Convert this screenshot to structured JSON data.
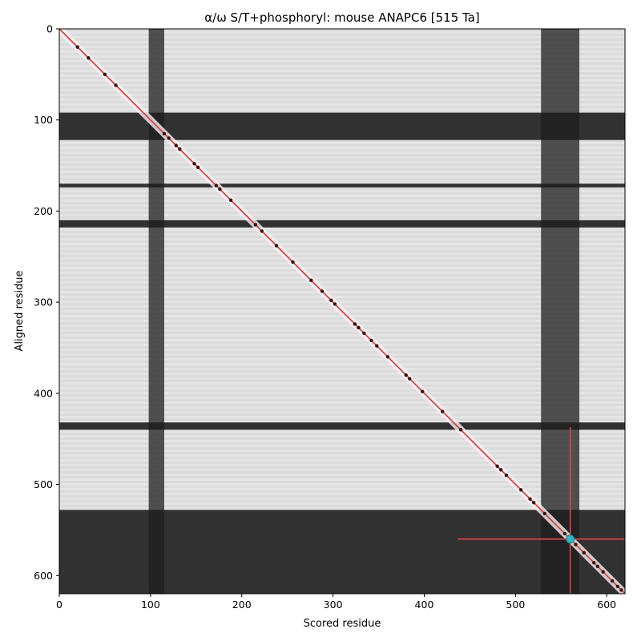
{
  "chart_data": {
    "type": "heatmap",
    "title": "α/ω S/T+phosphoryl: mouse ANAPC6 [515 Ta]",
    "xlabel": "Scored residue",
    "ylabel": "Aligned residue",
    "xlim": [
      0,
      620
    ],
    "ylim": [
      620,
      0
    ],
    "xticks": [
      0,
      100,
      200,
      300,
      400,
      500,
      600
    ],
    "yticks": [
      0,
      100,
      200,
      300,
      400,
      500,
      600
    ],
    "colormap": "grayscale (dark = low, light = high)",
    "dark_bands": {
      "horizontal": [
        [
          92,
          122
        ],
        [
          170,
          174
        ],
        [
          210,
          218
        ],
        [
          432,
          440
        ],
        [
          528,
          620
        ]
      ],
      "vertical": [
        [
          98,
          115
        ],
        [
          528,
          570
        ]
      ]
    },
    "diagonal_line": {
      "from": [
        0,
        0
      ],
      "to": [
        620,
        620
      ],
      "color": "#e8403f"
    },
    "diagonal_markers": [
      20,
      32,
      50,
      62,
      115,
      120,
      128,
      132,
      148,
      152,
      172,
      176,
      188,
      215,
      222,
      238,
      256,
      276,
      288,
      298,
      302,
      324,
      328,
      334,
      342,
      348,
      360,
      380,
      384,
      398,
      420,
      440,
      480,
      484,
      490,
      506,
      516,
      520,
      532,
      554,
      558,
      566,
      575,
      586,
      590,
      596,
      606,
      612,
      616
    ],
    "highlight": {
      "x": 560,
      "y": 560,
      "color": "#29b6c8"
    },
    "crosshair": {
      "x": 560,
      "y": 560,
      "x_range": [
        437,
        620
      ],
      "y_range": [
        437,
        620
      ],
      "color": "#e8403f"
    }
  }
}
